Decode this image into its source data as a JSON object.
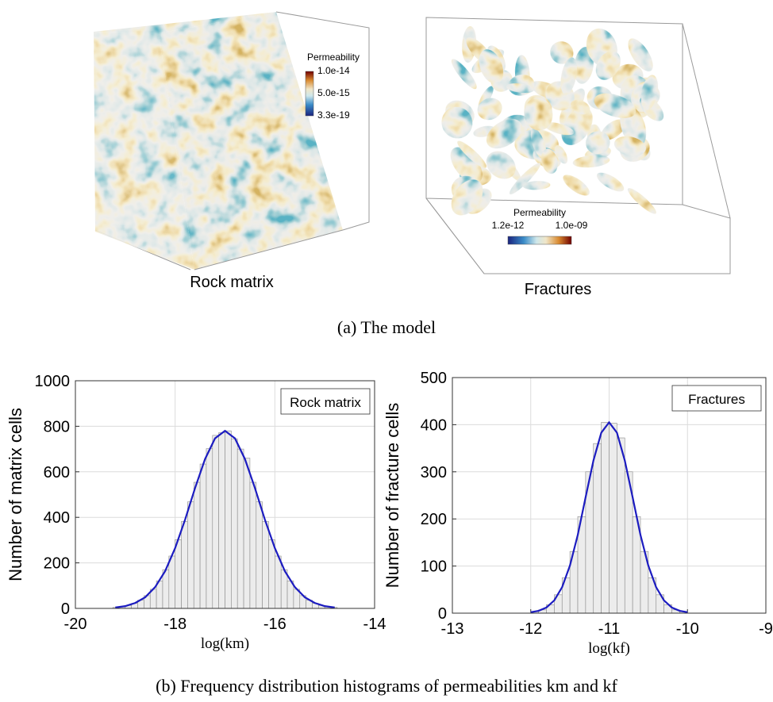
{
  "figure_a": {
    "caption": "(a) The model",
    "matrix": {
      "label": "Rock matrix",
      "colorbar": {
        "title": "Permeability",
        "labels": [
          "1.0e-14",
          "5.0e-15",
          "3.3e-19"
        ]
      }
    },
    "fractures": {
      "label": "Fractures",
      "colorbar": {
        "title": "Permeability",
        "labels": [
          "1.2e-12",
          "1.0e-09"
        ]
      }
    }
  },
  "chart_data": [
    {
      "type": "histogram",
      "annotation": "Rock matrix",
      "xlabel": "log(km)",
      "ylabel": "Number of matrix cells",
      "bins": [
        -19.25,
        -19.125,
        -19,
        -18.875,
        -18.75,
        -18.625,
        -18.5,
        -18.375,
        -18.25,
        -18.125,
        -18,
        -17.875,
        -17.75,
        -17.625,
        -17.5,
        -17.375,
        -17.25,
        -17.125,
        -17,
        -16.875,
        -16.75,
        -16.625,
        -16.5,
        -16.375,
        -16.25,
        -16.125,
        -16,
        -15.875,
        -15.75,
        -15.625,
        -15.5,
        -15.375,
        -15.25,
        -15.125,
        -15,
        -14.875,
        -14.75
      ],
      "values": [
        4,
        8,
        13,
        22,
        36,
        56,
        84,
        121,
        170,
        230,
        302,
        382,
        468,
        554,
        634,
        702,
        760,
        772,
        780,
        745,
        700,
        660,
        554,
        468,
        382,
        302,
        230,
        170,
        121,
        84,
        56,
        36,
        22,
        13,
        8,
        4
      ],
      "color": "#ececec",
      "curve": {
        "x": [
          -19.2,
          -19,
          -18.8,
          -18.6,
          -18.4,
          -18.2,
          -18,
          -17.8,
          -17.6,
          -17.4,
          -17.2,
          -17,
          -16.8,
          -16.6,
          -16.4,
          -16.2,
          -16,
          -15.8,
          -15.6,
          -15.4,
          -15.2,
          -15,
          -14.8
        ],
        "values": [
          4,
          10,
          24,
          49,
          94,
          164,
          265,
          390,
          529,
          656,
          747,
          780,
          747,
          656,
          529,
          390,
          265,
          164,
          94,
          49,
          24,
          10,
          4
        ],
        "color": "#1c1cc0"
      },
      "xlim": [
        -20,
        -14
      ],
      "xticks": [
        -20,
        -18,
        -16,
        -14
      ],
      "ylim": [
        0,
        1000
      ],
      "yticks": [
        0,
        200,
        400,
        600,
        800,
        1000
      ],
      "grid": true
    },
    {
      "type": "histogram",
      "annotation": "Fractures",
      "xlabel": "log(kf)",
      "ylabel": "Number of fracture cells",
      "bins": [
        -12,
        -11.9,
        -11.8,
        -11.7,
        -11.6,
        -11.5,
        -11.4,
        -11.3,
        -11.2,
        -11.1,
        -11,
        -10.9,
        -10.8,
        -10.7,
        -10.6,
        -10.5,
        -10.4,
        -10.3,
        -10.2,
        -10.1,
        -10
      ],
      "values": [
        3,
        7,
        18,
        39,
        75,
        131,
        205,
        300,
        360,
        405,
        403,
        372,
        300,
        205,
        131,
        75,
        39,
        18,
        7,
        3
      ],
      "color": "#ececec",
      "curve": {
        "x": [
          -12,
          -11.9,
          -11.8,
          -11.7,
          -11.6,
          -11.5,
          -11.4,
          -11.3,
          -11.2,
          -11.1,
          -11,
          -10.9,
          -10.8,
          -10.7,
          -10.6,
          -10.5,
          -10.4,
          -10.3,
          -10.2,
          -10.1,
          -10
        ],
        "values": [
          2,
          5,
          12,
          27,
          55,
          101,
          166,
          246,
          324,
          383,
          405,
          383,
          324,
          246,
          166,
          101,
          55,
          27,
          12,
          5,
          2
        ],
        "color": "#1c1cc0"
      },
      "xlim": [
        -13,
        -9
      ],
      "xticks": [
        -13,
        -12,
        -11,
        -10,
        -9
      ],
      "ylim": [
        0,
        500
      ],
      "yticks": [
        0,
        100,
        200,
        300,
        400,
        500
      ],
      "grid": true
    }
  ],
  "figure_b": {
    "caption": "(b) Frequency distribution histograms of permeabilities km and kf"
  }
}
